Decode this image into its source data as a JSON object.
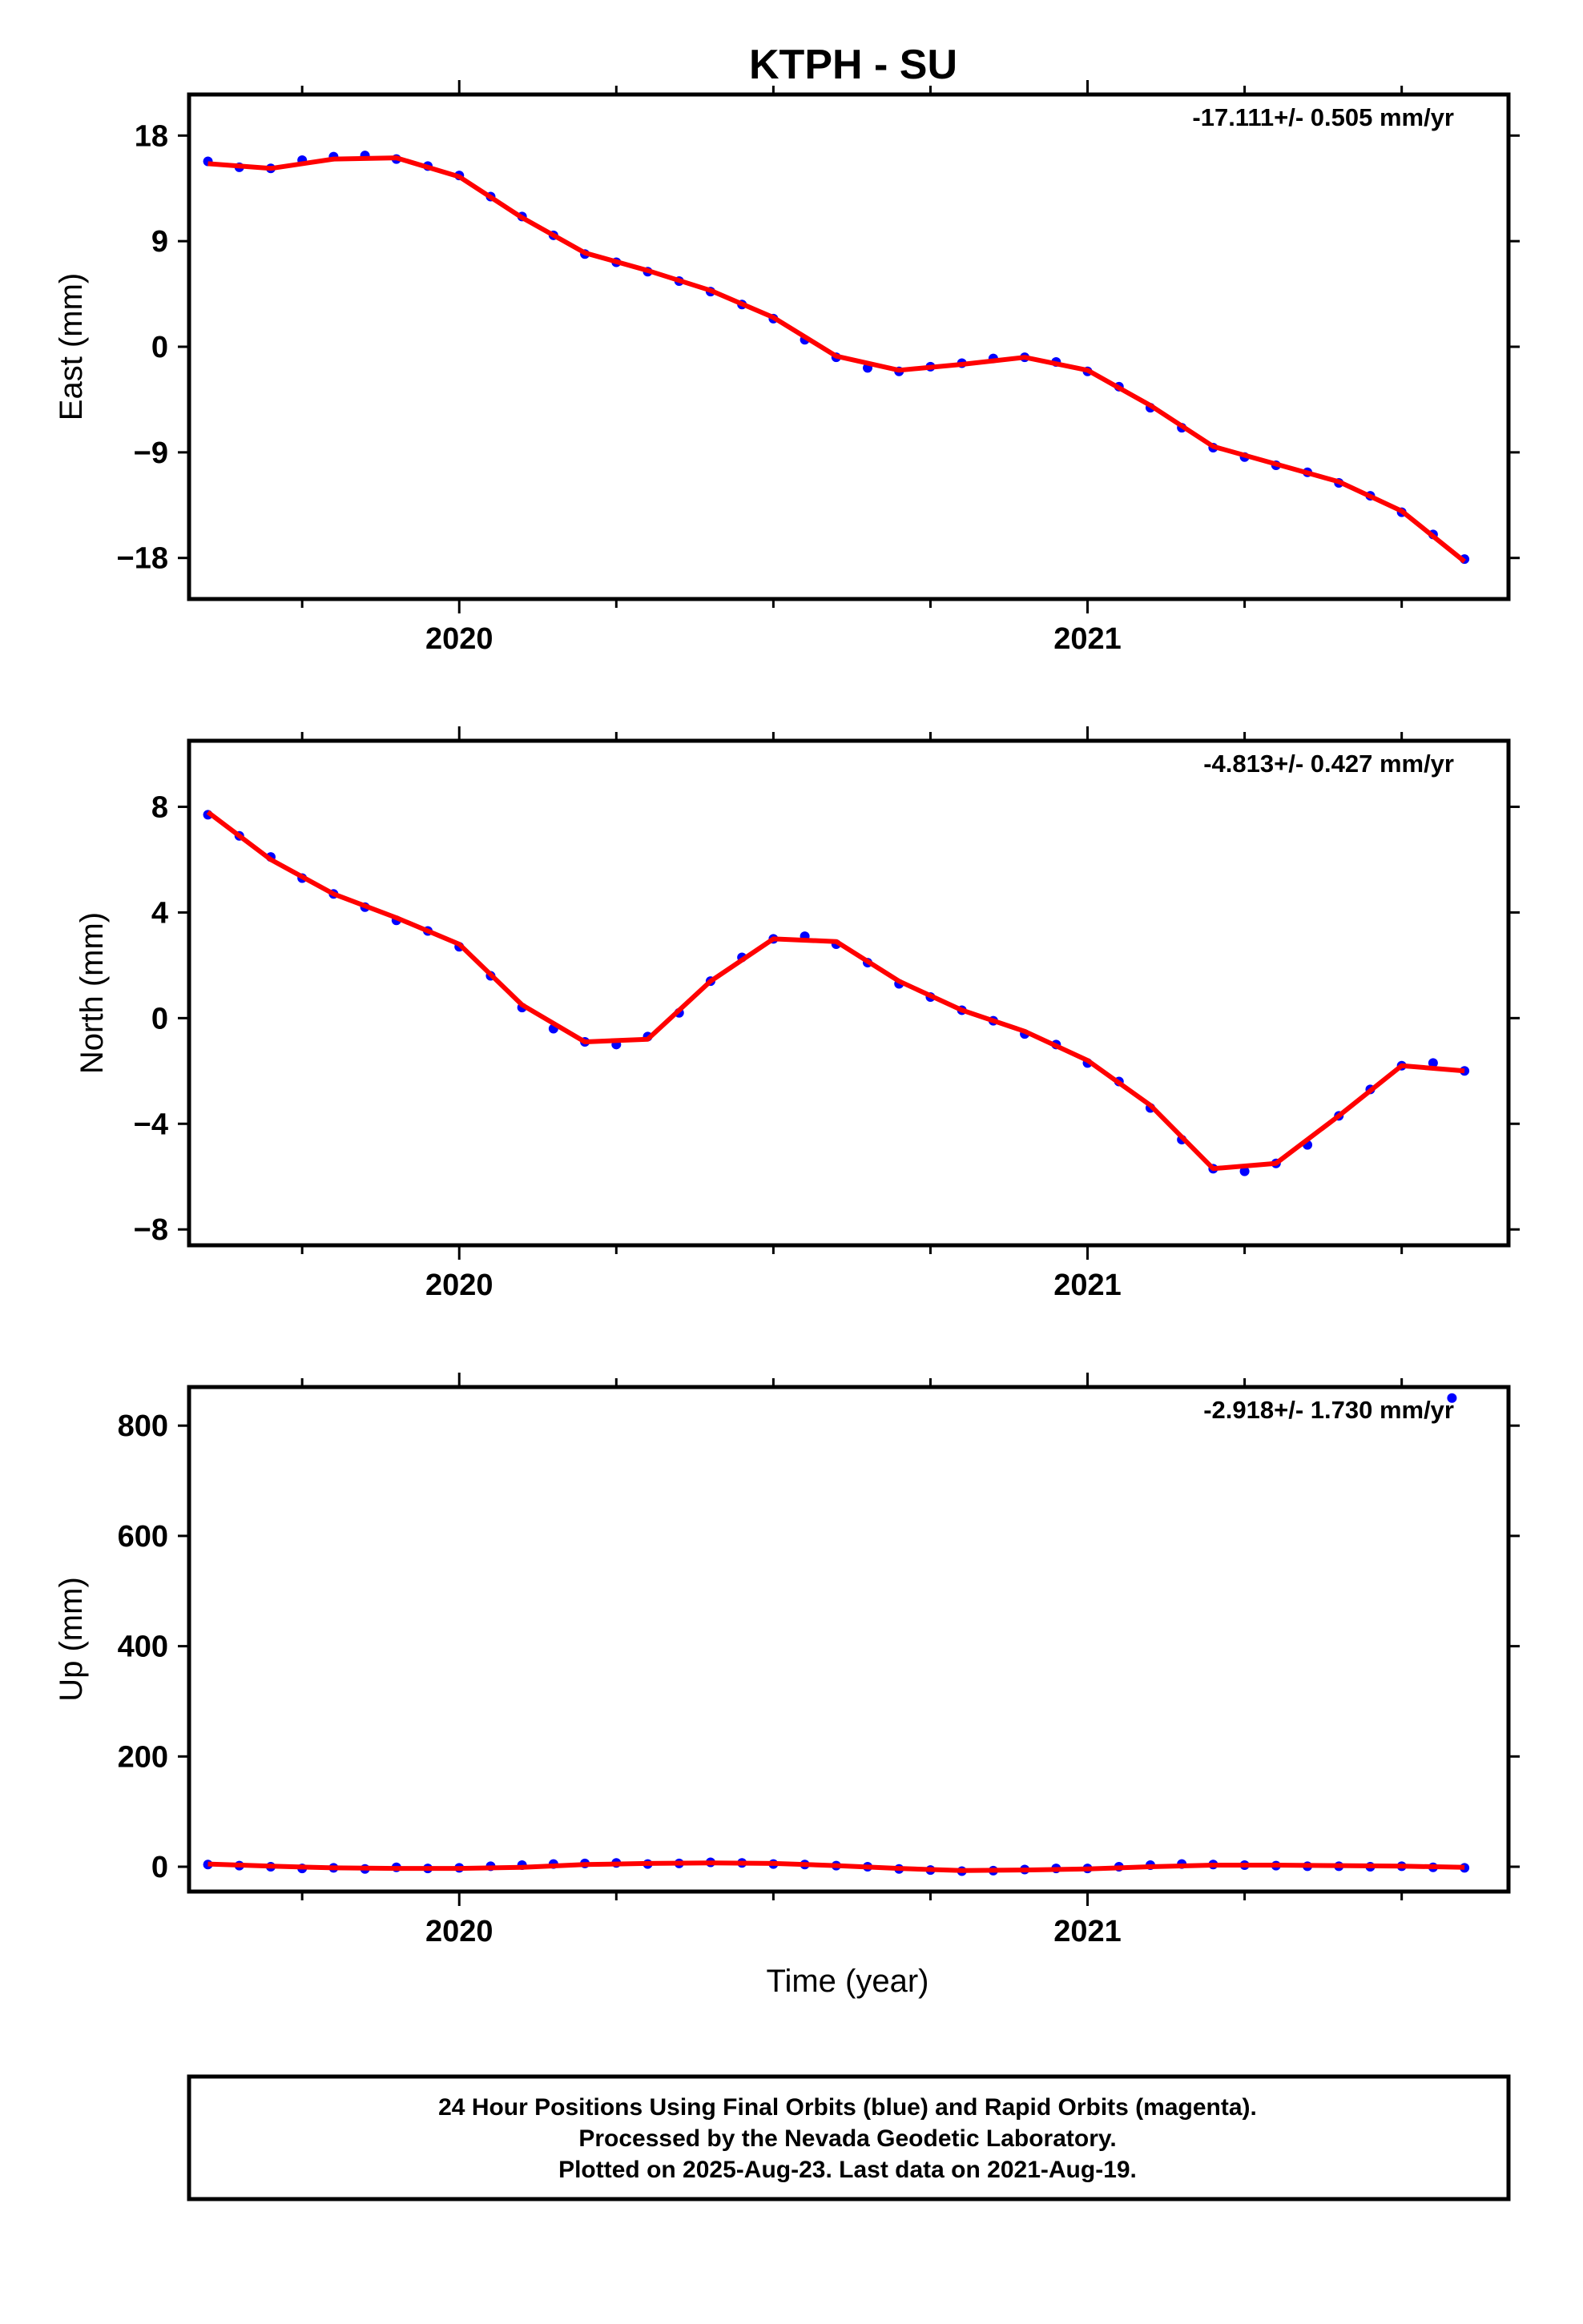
{
  "chart_data": {
    "title": "KTPH - SU",
    "type": "scatter",
    "xlabel": "Time (year)",
    "x_ticks": [
      "2020",
      "2021"
    ],
    "colors": {
      "points": "#0000ff",
      "fit": "#ff0000"
    },
    "panels": [
      {
        "ylabel": "East (mm)",
        "rate": "-17.111+/- 0.505 mm/yr",
        "ylim": [
          -21.5,
          21.5
        ],
        "yticks": [
          18,
          9,
          0,
          -9,
          -18
        ],
        "ytick_labels": [
          "18",
          "9",
          "0",
          "−9",
          "−18"
        ],
        "fit_x": [
          2019.6,
          2019.7,
          2019.8,
          2019.9,
          2020.0,
          2020.1,
          2020.2,
          2020.3,
          2020.4,
          2020.5,
          2020.6,
          2020.7,
          2020.8,
          2020.9,
          2021.0,
          2021.1,
          2021.2,
          2021.3,
          2021.4,
          2021.5,
          2021.6
        ],
        "fit_y": [
          15.6,
          15.2,
          16.0,
          16.1,
          14.5,
          11.0,
          8.0,
          6.5,
          4.8,
          2.5,
          -0.8,
          -2.0,
          -1.5,
          -0.9,
          -2.0,
          -5.0,
          -8.5,
          -10.0,
          -11.5,
          -14.0,
          -18.3
        ],
        "x": [
          2019.6,
          2019.65,
          2019.7,
          2019.75,
          2019.8,
          2019.85,
          2019.9,
          2019.95,
          2020.0,
          2020.05,
          2020.1,
          2020.15,
          2020.2,
          2020.25,
          2020.3,
          2020.35,
          2020.4,
          2020.45,
          2020.5,
          2020.55,
          2020.6,
          2020.65,
          2020.7,
          2020.75,
          2020.8,
          2020.85,
          2020.9,
          2020.95,
          2021.0,
          2021.05,
          2021.1,
          2021.15,
          2021.2,
          2021.25,
          2021.3,
          2021.35,
          2021.4,
          2021.45,
          2021.5,
          2021.55,
          2021.6
        ],
        "y": [
          15.8,
          15.3,
          15.2,
          15.9,
          16.2,
          16.3,
          16.0,
          15.4,
          14.6,
          12.8,
          11.1,
          9.5,
          7.9,
          7.2,
          6.4,
          5.6,
          4.7,
          3.6,
          2.4,
          0.6,
          -0.9,
          -1.8,
          -2.1,
          -1.7,
          -1.4,
          -1.0,
          -0.9,
          -1.3,
          -2.1,
          -3.4,
          -5.2,
          -6.9,
          -8.6,
          -9.4,
          -10.1,
          -10.7,
          -11.6,
          -12.7,
          -14.1,
          -16.0,
          -18.1
        ]
      },
      {
        "ylabel": "North (mm)",
        "rate": "-4.813+/- 0.427 mm/yr",
        "ylim": [
          -8.6,
          10.5
        ],
        "yticks": [
          8,
          4,
          0,
          -4,
          -8
        ],
        "ytick_labels": [
          "8",
          "4",
          "0",
          "−4",
          "−8"
        ],
        "fit_x": [
          2019.6,
          2019.7,
          2019.8,
          2019.9,
          2020.0,
          2020.1,
          2020.2,
          2020.3,
          2020.4,
          2020.5,
          2020.6,
          2020.7,
          2020.8,
          2020.9,
          2021.0,
          2021.1,
          2021.2,
          2021.3,
          2021.4,
          2021.5,
          2021.6
        ],
        "fit_y": [
          7.8,
          6.0,
          4.7,
          3.8,
          2.8,
          0.5,
          -0.9,
          -0.8,
          1.4,
          3.0,
          2.9,
          1.4,
          0.3,
          -0.5,
          -1.6,
          -3.3,
          -5.7,
          -5.5,
          -3.7,
          -1.8,
          -2.0
        ],
        "x": [
          2019.6,
          2019.65,
          2019.7,
          2019.75,
          2019.8,
          2019.85,
          2019.9,
          2019.95,
          2020.0,
          2020.05,
          2020.1,
          2020.15,
          2020.2,
          2020.25,
          2020.3,
          2020.35,
          2020.4,
          2020.45,
          2020.5,
          2020.55,
          2020.6,
          2020.65,
          2020.7,
          2020.75,
          2020.8,
          2020.85,
          2020.9,
          2020.95,
          2021.0,
          2021.05,
          2021.1,
          2021.15,
          2021.2,
          2021.25,
          2021.3,
          2021.35,
          2021.4,
          2021.45,
          2021.5,
          2021.55,
          2021.6
        ],
        "y": [
          7.7,
          6.9,
          6.1,
          5.3,
          4.7,
          4.2,
          3.7,
          3.3,
          2.7,
          1.6,
          0.4,
          -0.4,
          -0.9,
          -1.0,
          -0.7,
          0.2,
          1.4,
          2.3,
          3.0,
          3.1,
          2.8,
          2.1,
          1.3,
          0.8,
          0.3,
          -0.1,
          -0.6,
          -1.0,
          -1.7,
          -2.4,
          -3.4,
          -4.6,
          -5.7,
          -5.8,
          -5.5,
          -4.8,
          -3.7,
          -2.7,
          -1.8,
          -1.7,
          -2.0
        ]
      },
      {
        "ylabel": "Up (mm)",
        "rate": "-2.918+/- 1.730 mm/yr",
        "ylim": [
          -45,
          870
        ],
        "yticks": [
          800,
          600,
          400,
          200,
          0
        ],
        "ytick_labels": [
          "800",
          "600",
          "400",
          "200",
          "0"
        ],
        "fit_x": [
          2019.6,
          2019.7,
          2019.8,
          2019.9,
          2020.0,
          2020.1,
          2020.2,
          2020.3,
          2020.4,
          2020.5,
          2020.6,
          2020.7,
          2020.8,
          2020.9,
          2021.0,
          2021.1,
          2021.2,
          2021.3,
          2021.4,
          2021.5,
          2021.6
        ],
        "fit_y": [
          5,
          1,
          -2,
          -3,
          -3,
          -1,
          4,
          6,
          7,
          6,
          2,
          -3,
          -7,
          -6,
          -4,
          0,
          3,
          3,
          2,
          1,
          -1
        ],
        "x": [
          2019.6,
          2019.65,
          2019.7,
          2019.75,
          2019.8,
          2019.85,
          2019.9,
          2019.95,
          2020.0,
          2020.05,
          2020.1,
          2020.15,
          2020.2,
          2020.25,
          2020.3,
          2020.35,
          2020.4,
          2020.45,
          2020.5,
          2020.55,
          2020.6,
          2020.65,
          2020.7,
          2020.75,
          2020.8,
          2020.85,
          2020.9,
          2020.95,
          2021.0,
          2021.05,
          2021.1,
          2021.15,
          2021.2,
          2021.25,
          2021.3,
          2021.35,
          2021.4,
          2021.45,
          2021.5,
          2021.55,
          2021.6,
          2021.58
        ],
        "y": [
          4,
          2,
          0,
          -3,
          -2,
          -4,
          -1,
          -3,
          -2,
          1,
          3,
          5,
          6,
          7,
          5,
          6,
          8,
          7,
          5,
          4,
          2,
          0,
          -4,
          -6,
          -8,
          -7,
          -5,
          -3,
          -3,
          0,
          3,
          5,
          4,
          3,
          2,
          1,
          1,
          0,
          1,
          -1,
          -2,
          850
        ]
      }
    ]
  },
  "footer": {
    "line1": "24 Hour Positions Using Final Orbits (blue) and Rapid Orbits (magenta).",
    "line2": "Processed by the Nevada Geodetic Laboratory.",
    "line3": "Plotted on 2025-Aug-23. Last data on 2021-Aug-19."
  }
}
